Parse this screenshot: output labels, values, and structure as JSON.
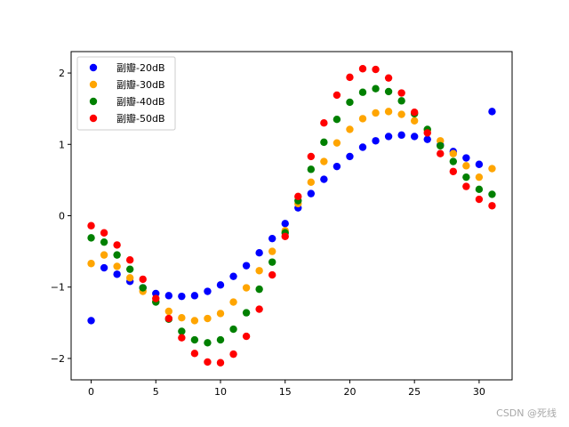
{
  "chart_data": {
    "type": "scatter",
    "title": "",
    "xlabel": "",
    "ylabel": "",
    "xlim": [
      -1.55,
      32.55
    ],
    "ylim": [
      -2.3,
      2.3
    ],
    "xticks": [
      0,
      5,
      10,
      15,
      20,
      25,
      30
    ],
    "yticks": [
      -2,
      -1,
      0,
      1,
      2
    ],
    "grid": false,
    "legend_position": "top-left",
    "x": [
      0,
      1,
      2,
      3,
      4,
      5,
      6,
      7,
      8,
      9,
      10,
      11,
      12,
      13,
      14,
      15,
      16,
      17,
      18,
      19,
      20,
      21,
      22,
      23,
      24,
      25,
      26,
      27,
      28,
      29,
      30,
      31
    ],
    "series": [
      {
        "name": "副瓣-20dB",
        "color": "#0000ff",
        "values": [
          -1.47,
          -0.73,
          -0.82,
          -0.92,
          -1.01,
          -1.09,
          -1.12,
          -1.13,
          -1.12,
          -1.06,
          -0.97,
          -0.85,
          -0.7,
          -0.52,
          -0.32,
          -0.11,
          0.11,
          0.31,
          0.51,
          0.69,
          0.83,
          0.96,
          1.05,
          1.11,
          1.13,
          1.11,
          1.07,
          0.99,
          0.9,
          0.81,
          0.72,
          1.46
        ]
      },
      {
        "name": "副瓣-30dB",
        "color": "#ffa500",
        "values": [
          -0.67,
          -0.55,
          -0.71,
          -0.87,
          -1.06,
          -1.2,
          -1.34,
          -1.43,
          -1.47,
          -1.44,
          -1.37,
          -1.21,
          -1.01,
          -0.77,
          -0.5,
          -0.21,
          0.17,
          0.47,
          0.76,
          1.02,
          1.21,
          1.36,
          1.44,
          1.46,
          1.42,
          1.33,
          1.2,
          1.05,
          0.87,
          0.7,
          0.54,
          0.66
        ]
      },
      {
        "name": "副瓣-40dB",
        "color": "#008000",
        "values": [
          -0.31,
          -0.37,
          -0.55,
          -0.75,
          -1.01,
          -1.21,
          -1.45,
          -1.62,
          -1.74,
          -1.78,
          -1.74,
          -1.59,
          -1.36,
          -1.03,
          -0.65,
          -0.24,
          0.21,
          0.65,
          1.03,
          1.35,
          1.59,
          1.73,
          1.78,
          1.74,
          1.61,
          1.43,
          1.21,
          0.98,
          0.76,
          0.54,
          0.37,
          0.3
        ]
      },
      {
        "name": "副瓣-50dB",
        "color": "#ff0000",
        "values": [
          -0.14,
          -0.24,
          -0.41,
          -0.62,
          -0.89,
          -1.16,
          -1.44,
          -1.71,
          -1.93,
          -2.05,
          -2.06,
          -1.94,
          -1.69,
          -1.31,
          -0.83,
          -0.29,
          0.27,
          0.83,
          1.3,
          1.69,
          1.94,
          2.06,
          2.05,
          1.93,
          1.72,
          1.45,
          1.16,
          0.87,
          0.62,
          0.41,
          0.23,
          0.14
        ]
      }
    ]
  },
  "watermark": "CSDN @死线"
}
